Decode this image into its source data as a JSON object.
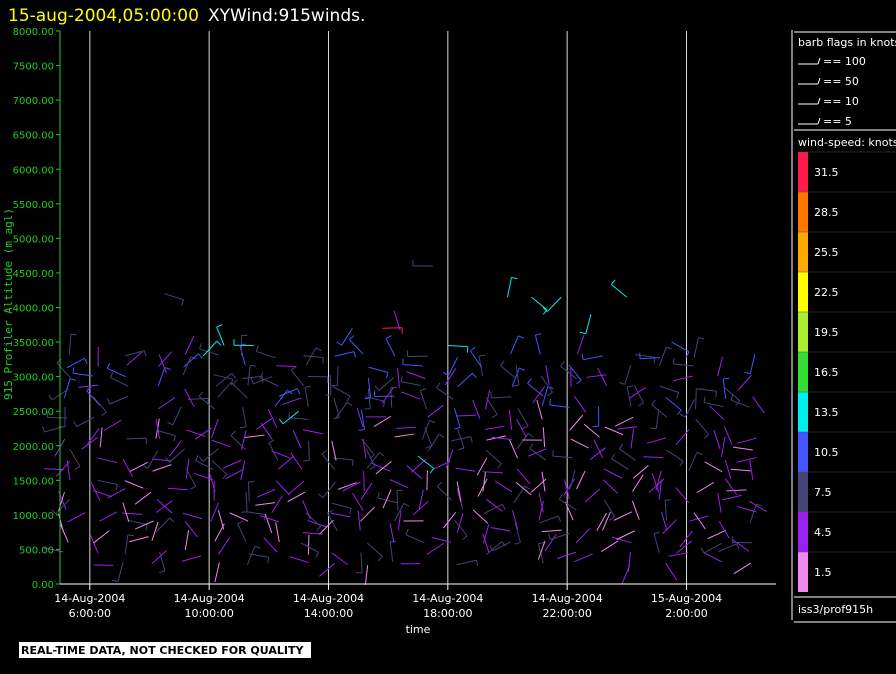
{
  "header": {
    "date_time": "15-aug-2004,05:00:00",
    "product": "XYWind:915winds."
  },
  "legend": {
    "barb_title": "barb flags in knots",
    "barb_items": [
      "== 100",
      "== 50",
      "== 10",
      "== 5"
    ],
    "speed_title": "wind-speed: knots",
    "speed_levels": [
      {
        "label": "31.5",
        "color": "#ff1a4a"
      },
      {
        "label": "28.5",
        "color": "#ff7700"
      },
      {
        "label": "25.5",
        "color": "#ffaa00"
      },
      {
        "label": "22.5",
        "color": "#ffff00"
      },
      {
        "label": "19.5",
        "color": "#aaee33"
      },
      {
        "label": "16.5",
        "color": "#33dd33"
      },
      {
        "label": "13.5",
        "color": "#00eeee"
      },
      {
        "label": "10.5",
        "color": "#4455ff"
      },
      {
        "label": "7.5",
        "color": "#444477"
      },
      {
        "label": "4.5",
        "color": "#9922ee"
      },
      {
        "label": "1.5",
        "color": "#ee88ee"
      }
    ],
    "source": "iss3/prof915h"
  },
  "notice": "REAL-TIME DATA, NOT CHECKED FOR QUALITY",
  "chart_data": {
    "type": "scatter",
    "mark": "wind barbs",
    "xlabel": "time",
    "ylabel": "915 Profiler Altitude (m agl)",
    "ylim": [
      0,
      8000
    ],
    "xlim": [
      "2004-08-14 05:00",
      "2004-08-15 05:00"
    ],
    "y_ticks": [
      "0.00",
      "500.00",
      "1000.00",
      "1500.00",
      "2000.00",
      "2500.00",
      "3000.00",
      "3500.00",
      "4000.00",
      "4500.00",
      "5000.00",
      "5500.00",
      "6000.00",
      "6500.00",
      "7000.00",
      "7500.00",
      "8000.00"
    ],
    "x_ticks": [
      {
        "date": "14-Aug-2004",
        "time": "6:00:00"
      },
      {
        "date": "14-Aug-2004",
        "time": "10:00:00"
      },
      {
        "date": "14-Aug-2004",
        "time": "14:00:00"
      },
      {
        "date": "14-Aug-2004",
        "time": "18:00:00"
      },
      {
        "date": "14-Aug-2004",
        "time": "22:00:00"
      },
      {
        "date": "15-Aug-2004",
        "time": "2:00:00"
      }
    ],
    "grid": "vertical lines at x ticks",
    "profile_times_hours": [
      5.2,
      6.2,
      7.2,
      8.2,
      9.2,
      10.2,
      11.2,
      12.2,
      13.2,
      14.2,
      15.2,
      16.2,
      17.2,
      18.2,
      19.2,
      20.2,
      21.2,
      22.2,
      23.2,
      24.2,
      25.2,
      26.2,
      27.2,
      28.2
    ],
    "profile_altitudes_m": [
      300,
      450,
      600,
      750,
      900,
      1050,
      1200,
      1350,
      1500,
      1650,
      1800,
      1950,
      2100,
      2250,
      2400,
      2550,
      2700,
      2850,
      3000,
      3150,
      3300
    ],
    "speed_range_knots": [
      1.5,
      31.5
    ],
    "upper_observations": [
      {
        "hour": 8.5,
        "alt_m": 4200,
        "speed_kt": 7.5
      },
      {
        "hour": 9.8,
        "alt_m": 3300,
        "speed_kt": 13.5
      },
      {
        "hour": 10.5,
        "alt_m": 3450,
        "speed_kt": 13.5
      },
      {
        "hour": 11.5,
        "alt_m": 3450,
        "speed_kt": 13.5
      },
      {
        "hour": 13.0,
        "alt_m": 2500,
        "speed_kt": 13.5
      },
      {
        "hour": 14.8,
        "alt_m": 3700,
        "speed_kt": 10.5
      },
      {
        "hour": 15.8,
        "alt_m": 3700,
        "speed_kt": 31.5
      },
      {
        "hour": 16.2,
        "alt_m": 3950,
        "speed_kt": 4.5
      },
      {
        "hour": 17.0,
        "alt_m": 1850,
        "speed_kt": 13.5
      },
      {
        "hour": 17.5,
        "alt_m": 4600,
        "speed_kt": 7.5
      },
      {
        "hour": 18.0,
        "alt_m": 3450,
        "speed_kt": 13.5
      },
      {
        "hour": 20.0,
        "alt_m": 4150,
        "speed_kt": 13.5
      },
      {
        "hour": 20.8,
        "alt_m": 4150,
        "speed_kt": 13.5
      },
      {
        "hour": 21.8,
        "alt_m": 4150,
        "speed_kt": 13.5
      },
      {
        "hour": 22.8,
        "alt_m": 3900,
        "speed_kt": 13.5
      },
      {
        "hour": 24.0,
        "alt_m": 4150,
        "speed_kt": 13.5
      },
      {
        "hour": 25.5,
        "alt_m": 3500,
        "speed_kt": 10.5
      }
    ]
  }
}
